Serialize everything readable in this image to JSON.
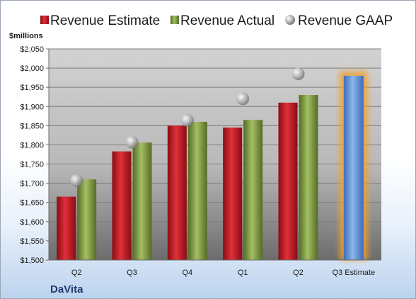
{
  "chart_data": {
    "type": "bar",
    "ylabel": "$millions",
    "ylim": [
      1500,
      2050
    ],
    "y_ticks": [
      "$1,500",
      "$1,550",
      "$1,600",
      "$1,650",
      "$1,700",
      "$1,750",
      "$1,800",
      "$1,850",
      "$1,900",
      "$1,950",
      "$2,000",
      "$2,050"
    ],
    "categories": [
      "Q2",
      "Q3",
      "Q4",
      "Q1",
      "Q2",
      "Q3 Estimate"
    ],
    "grid": true,
    "legend_position": "top",
    "series": [
      {
        "name": "Revenue Estimate",
        "type": "bar",
        "color": "#c0131c",
        "values": [
          1665,
          1783,
          1850,
          1845,
          1910,
          null
        ]
      },
      {
        "name": "Revenue Actual",
        "type": "bar",
        "color": "#7a9a3a",
        "values": [
          1710,
          1806,
          1860,
          1865,
          1930,
          null
        ]
      },
      {
        "name": "Revenue GAAP",
        "type": "marker",
        "color": "#a8a8a8",
        "values": [
          1707,
          1807,
          1864,
          1920,
          1985,
          null
        ]
      }
    ],
    "estimate_bar": {
      "category": "Q3 Estimate",
      "value": 1980,
      "color": "#5b8ed6",
      "glow": "#f0a030"
    }
  },
  "brand": "DaVita"
}
